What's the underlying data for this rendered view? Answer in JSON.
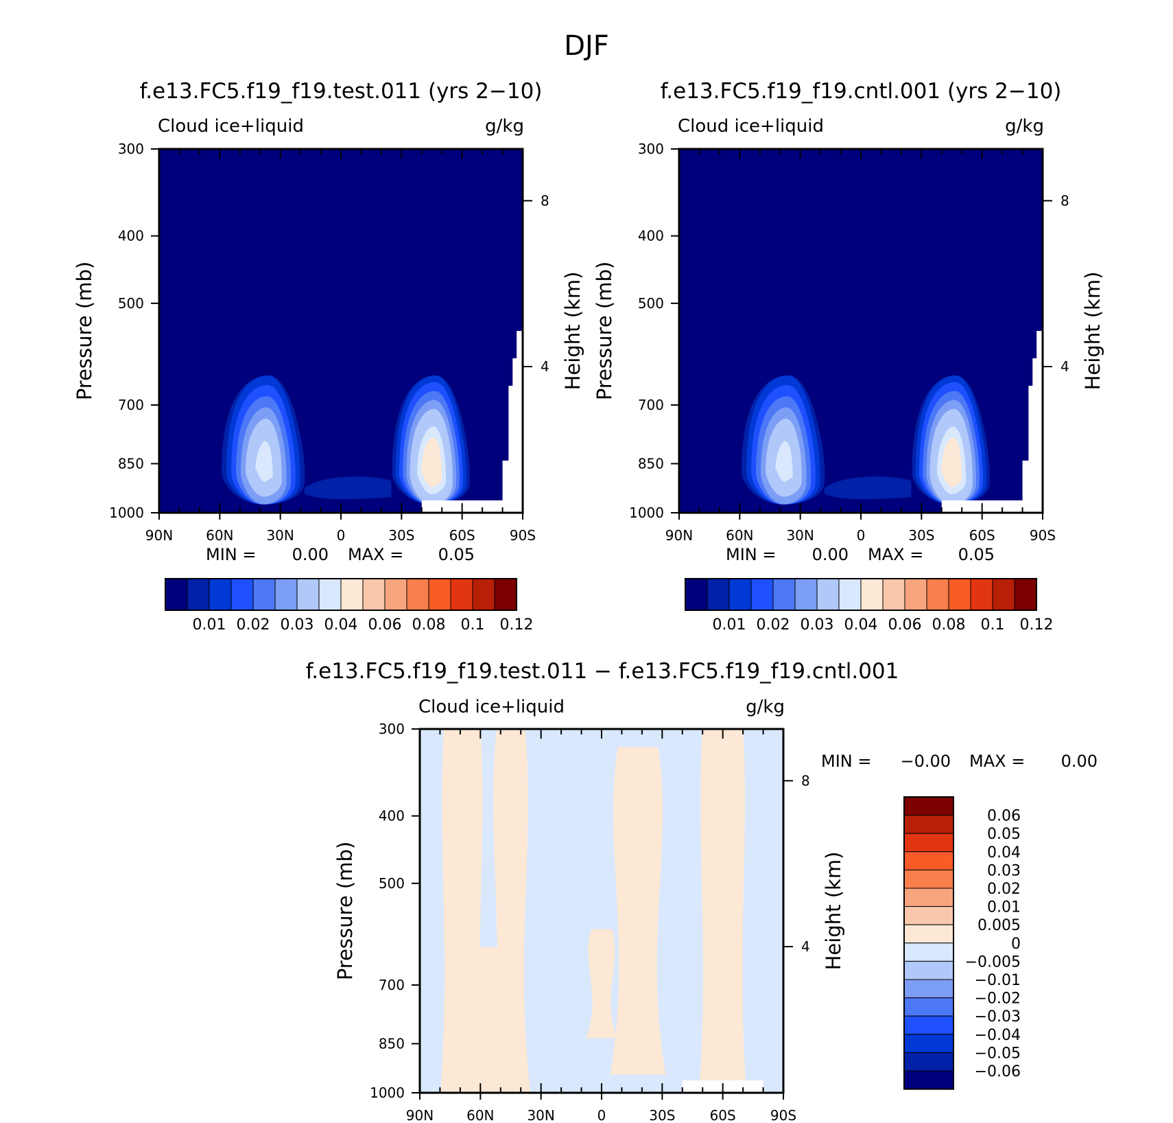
{
  "figure_title": "DJF",
  "colors": {
    "abs_scale": [
      "#00007d",
      "#0021a8",
      "#0039d6",
      "#1e50ff",
      "#4c78f5",
      "#7d9ef5",
      "#b0c8fa",
      "#d9e8fc",
      "#fde8d5",
      "#f9c7ac",
      "#f7a57f",
      "#f97f4f",
      "#fa5b27",
      "#e13611",
      "#b81f07",
      "#7d0000"
    ],
    "diff_scale": [
      "#00007d",
      "#0021a8",
      "#0039d6",
      "#1e50ff",
      "#4c78f5",
      "#7d9ef5",
      "#b0c8fa",
      "#d9e8fc",
      "#fde8d5",
      "#f9c7ac",
      "#f7a57f",
      "#f97f4f",
      "#fa5b27",
      "#e13611",
      "#b81f07",
      "#7d0000"
    ]
  },
  "chart_data": [
    {
      "type": "heatmap",
      "title": "f.e13.FC5.f19_f19.test.011 (yrs 2-10)",
      "left_string": "Cloud ice+liquid",
      "units": "g/kg",
      "ylabel": "Pressure (mb)",
      "ylabel_right": "Height (km)",
      "y_ticks": [
        "300",
        "400",
        "500",
        "700",
        "850",
        "1000"
      ],
      "y_ticks_right": [
        "8",
        "4"
      ],
      "x_ticks": [
        "90N",
        "60N",
        "30N",
        "0",
        "30S",
        "60S",
        "90S"
      ],
      "stats": {
        "min_label": "MIN =",
        "min": "0.00",
        "max_label": "MAX =",
        "max": "0.05"
      },
      "colorbar_labels": [
        "0.01",
        "0.02",
        "0.03",
        "0.04",
        "0.06",
        "0.08",
        "0.1",
        "0.12"
      ],
      "features": [
        {
          "lat": 38,
          "p": 855,
          "peak": 0.04
        },
        {
          "lat": -45,
          "p": 860,
          "peak": 0.05
        }
      ]
    },
    {
      "type": "heatmap",
      "title": "f.e13.FC5.f19_f19.cntl.001 (yrs 2-10)",
      "left_string": "Cloud ice+liquid",
      "units": "g/kg",
      "ylabel": "Pressure (mb)",
      "ylabel_right": "Height (km)",
      "y_ticks": [
        "300",
        "400",
        "500",
        "700",
        "850",
        "1000"
      ],
      "y_ticks_right": [
        "8",
        "4"
      ],
      "x_ticks": [
        "90N",
        "60N",
        "30N",
        "0",
        "30S",
        "60S",
        "90S"
      ],
      "stats": {
        "min_label": "MIN =",
        "min": "0.00",
        "max_label": "MAX =",
        "max": "0.05"
      },
      "colorbar_labels": [
        "0.01",
        "0.02",
        "0.03",
        "0.04",
        "0.06",
        "0.08",
        "0.1",
        "0.12"
      ],
      "features": [
        {
          "lat": 38,
          "p": 855,
          "peak": 0.04
        },
        {
          "lat": -45,
          "p": 860,
          "peak": 0.05
        }
      ]
    },
    {
      "type": "heatmap",
      "title": "f.e13.FC5.f19_f19.test.011 - f.e13.FC5.f19_f19.cntl.001",
      "left_string": "Cloud ice+liquid",
      "units": "g/kg",
      "ylabel": "Pressure (mb)",
      "ylabel_right": "Height (km)",
      "y_ticks": [
        "300",
        "400",
        "500",
        "700",
        "850",
        "1000"
      ],
      "y_ticks_right": [
        "8",
        "4"
      ],
      "x_ticks": [
        "90N",
        "60N",
        "30N",
        "0",
        "30S",
        "60S",
        "90S"
      ],
      "stats": {
        "min_label": "MIN =",
        "min": "-0.00",
        "max_label": "MAX =",
        "max": "0.00"
      },
      "colorbar_labels": [
        "0.06",
        "0.05",
        "0.04",
        "0.03",
        "0.02",
        "0.01",
        "0.005",
        "0",
        "-0.005",
        "-0.01",
        "-0.02",
        "-0.03",
        "-0.04",
        "-0.05",
        "-0.06"
      ],
      "values_range": [
        -0.005,
        0.005
      ]
    }
  ]
}
